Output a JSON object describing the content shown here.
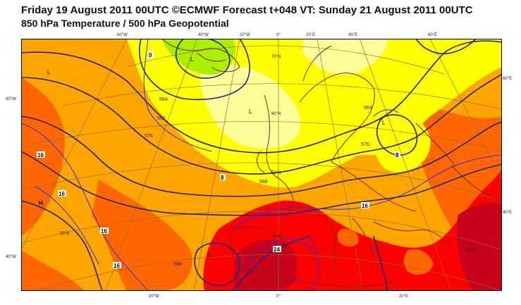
{
  "header": {
    "title_line1": "Friday 19 August 2011 00UTC ©ECMWF Forecast t+048 VT: Sunday 21 August 2011 00UTC",
    "title_line2": "850 hPa Temperature / 500 hPa Geopotential"
  },
  "colors": {
    "ocean_mid": "#ffa500",
    "warm_dark": "#ff6600",
    "hot": "#ff0000",
    "very_hot": "#c8001a",
    "cool_yellow": "#ffff00",
    "pale_yellow": "#ffff99",
    "cold_green": "#aaee00",
    "contour": "#23238c",
    "isotherm": "#2e2ee6",
    "coast": "#7a2a10",
    "graticule": "#8a7040"
  },
  "lon_labels_top": [
    "60°W",
    "40°W",
    "20°W",
    "0°",
    "20°E",
    "40°E",
    "60°E"
  ],
  "lon_labels_bottom": [
    "20°W",
    "0°",
    "20°E"
  ],
  "lat_labels_left": [
    "60°W",
    "40°W"
  ],
  "lat_labels_right": [
    "60°E",
    "40°E"
  ],
  "lat_labels_inner": [
    "70°N",
    "60°N",
    "50°N",
    "40°N",
    "30°N"
  ],
  "pressure_labels": [
    "L",
    "L",
    "L",
    "L",
    "H",
    "H"
  ],
  "geopotential_labels": [
    "552",
    "564",
    "576",
    "588",
    "576",
    "564",
    "588"
  ],
  "temperature_labels": [
    "16",
    "16",
    "16",
    "16",
    "16",
    "8",
    "8",
    "0",
    "24"
  ]
}
